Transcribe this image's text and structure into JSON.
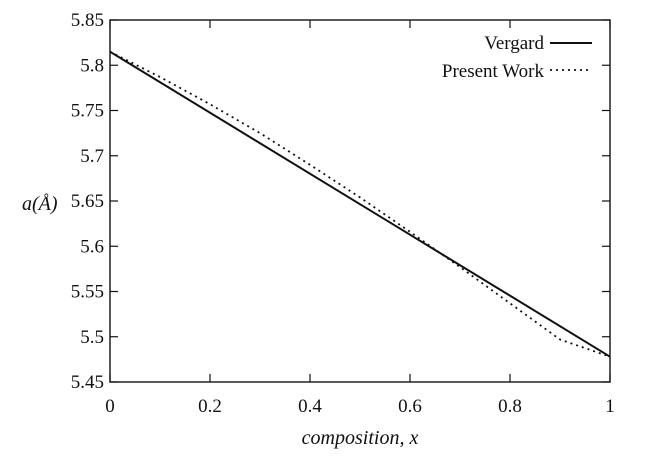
{
  "chart_data": {
    "type": "line",
    "title": "",
    "xlabel": "composition, x",
    "ylabel": "a(Å)",
    "xlim": [
      0,
      1
    ],
    "ylim": [
      5.45,
      5.85
    ],
    "x_ticks": [
      "0",
      "0.2",
      "0.4",
      "0.6",
      "0.8",
      "1"
    ],
    "y_ticks": [
      "5.45",
      "5.5",
      "5.55",
      "5.6",
      "5.65",
      "5.7",
      "5.75",
      "5.8",
      "5.85"
    ],
    "legend_position": "top-right",
    "series": [
      {
        "name": "Vergard",
        "style": "solid",
        "x": [
          0,
          1
        ],
        "y": [
          5.815,
          5.478
        ]
      },
      {
        "name": "Present Work",
        "style": "dotted",
        "x": [
          0,
          0.1,
          0.2,
          0.3,
          0.4,
          0.5,
          0.6,
          0.7,
          0.8,
          0.9,
          1.0
        ],
        "y": [
          5.815,
          5.787,
          5.757,
          5.725,
          5.69,
          5.654,
          5.616,
          5.577,
          5.537,
          5.497,
          5.478
        ]
      }
    ]
  }
}
